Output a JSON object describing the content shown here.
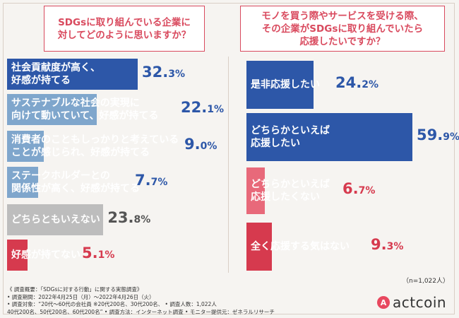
{
  "left_question": [
    "SDGsに取り組んでいる企業に",
    "対してどのように思いますか？"
  ],
  "right_question": [
    "モノを買う際やサービスを受ける際、",
    "その企業がSDGsに取り組んでいたら",
    "応援したいですか？"
  ],
  "colors": {
    "positive": "#2d57a8",
    "positive_light": "#7fa6cc",
    "neutral": "#bdbdbd",
    "negative": "#d63a4e",
    "negative_light": "#e8697a",
    "percent_text": "#2d57a8",
    "percent_neutral": "#555555",
    "percent_negative": "#d63a4e"
  },
  "chart_data": [
    {
      "type": "bar",
      "title": "SDGsに取り組んでいる企業に対してどのように思いますか？",
      "categories": [
        "社会貢献度が高く、好感が持てる",
        "サステナブルな社会の実現に向けて動いていて、好感が持てる",
        "消費者のこともしっかりと考えていることが感じられ、好感が持てる",
        "ステークホルダーとの関係性が高く、好感が持てる",
        "どちらともいえない",
        "好感が持てない"
      ],
      "values": [
        32.3,
        22.1,
        9.0,
        7.7,
        23.8,
        5.1
      ],
      "unit": "%"
    },
    {
      "type": "bar",
      "title": "モノを買う際やサービスを受ける際、その企業がSDGsに取り組んでいたら応援したいですか？",
      "categories": [
        "是非応援したい",
        "どちらかといえば応援したい",
        "どちらかといえば応援したくない",
        "全く応援する気はない"
      ],
      "values": [
        24.2,
        59.9,
        6.7,
        9.3
      ],
      "unit": "%"
    }
  ],
  "left_labels": [
    [
      "社会貢献度が高く、",
      "好感が持てる"
    ],
    [
      "サステナブルな社会の実現に",
      "向けて動いていて、好感が持てる"
    ],
    [
      "消費者のこともしっかりと考えている",
      "ことが感じられ、好感が持てる"
    ],
    [
      "ステークホルダーとの",
      "関係性が高く、好感が持てる"
    ],
    [
      "どちらともいえない"
    ],
    [
      "好感が持てない"
    ]
  ],
  "left_pct": [
    [
      "32.",
      "3%"
    ],
    [
      "22.",
      "1%"
    ],
    [
      "9.",
      "0%"
    ],
    [
      "7.",
      "7%"
    ],
    [
      "23.",
      "8%"
    ],
    [
      "5.",
      "1%"
    ]
  ],
  "right_labels": [
    [
      "是非応援したい"
    ],
    [
      "どちらかといえば",
      "応援したい"
    ],
    [
      "どちらかといえば",
      "応援したくない"
    ],
    [
      "全く応援する気はない"
    ]
  ],
  "right_pct": [
    [
      "24.",
      "2%"
    ],
    [
      "59.",
      "9%"
    ],
    [
      "6.",
      "7%"
    ],
    [
      "9.",
      "3%"
    ]
  ],
  "sample_note": "（n=1,022人）",
  "footer": [
    "《 調査概要：「SDGsに対する行動」に関する実態調査》",
    "• 調査期間：2022年4月25日（月）～2022年4月26日（火）",
    "• 調査対象：“20代～60代の会社員 ※20代200名、30代200名、      • 調査人数：1,022人",
    "   40代200名、50代200名、60代200名”                                          • 調査方法：インターネット調査          • モニター提供元：ゼネラルリサーチ"
  ],
  "logo": {
    "mark": "A",
    "name": "actcoin"
  }
}
